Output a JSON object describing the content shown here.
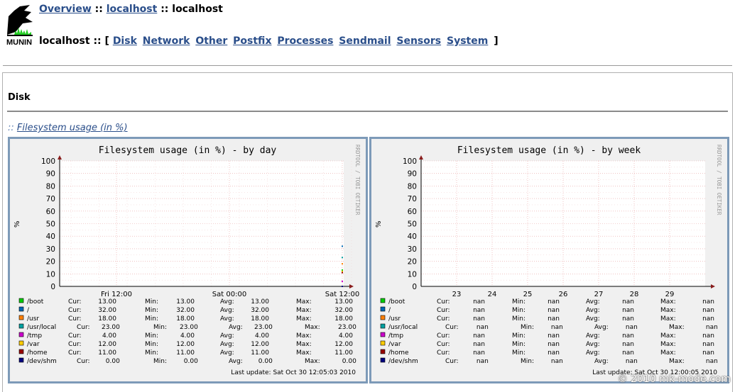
{
  "breadcrumb": {
    "overview": "Overview",
    "sep1": "::",
    "domain": "localhost",
    "sep2": "::",
    "current": "localhost"
  },
  "logo": {
    "text": "MUNIN"
  },
  "host_nav": {
    "host": "localhost",
    "separator": "::",
    "open": "[",
    "close": "]",
    "categories": [
      "Disk",
      "Network",
      "Other",
      "Postfix",
      "Processes",
      "Sendmail",
      "Sensors",
      "System"
    ]
  },
  "category": {
    "title": "Disk"
  },
  "graph_link": {
    "prefix": "::",
    "label": "Filesystem usage (in %)"
  },
  "watermark": "© 2010 mk-mode.com",
  "colors": {
    "link": "#2a4e8a",
    "frame": "#7d9ab8",
    "grid": "#e8a0a0",
    "axis": "#8a1d1d"
  },
  "graphs": [
    {
      "id": "day",
      "title": "Filesystem usage (in %) - by day",
      "ylabel": "%",
      "side_label": "RRDTOOL / TOBI OETIKER",
      "y_ticks": [
        "100",
        "90",
        "80",
        "70",
        "60",
        "50",
        "40",
        "30",
        "20",
        "10",
        "0"
      ],
      "x_ticks": [
        "Fri 12:00",
        "Sat 00:00",
        "Sat 12:00"
      ],
      "legend_headers": [
        "Cur:",
        "Min:",
        "Avg:",
        "Max:"
      ],
      "legend": [
        {
          "label": "/boot",
          "color": "#00cc00",
          "cur": "13.00",
          "min": "13.00",
          "avg": "13.00",
          "max": "13.00"
        },
        {
          "label": "/",
          "color": "#0066b3",
          "cur": "32.00",
          "min": "32.00",
          "avg": "32.00",
          "max": "32.00"
        },
        {
          "label": "/usr",
          "color": "#ff8000",
          "cur": "18.00",
          "min": "18.00",
          "avg": "18.00",
          "max": "18.00"
        },
        {
          "label": "/usr/local",
          "color": "#00a0a0",
          "cur": "23.00",
          "min": "23.00",
          "avg": "23.00",
          "max": "23.00"
        },
        {
          "label": "/tmp",
          "color": "#cc00cc",
          "cur": "4.00",
          "min": "4.00",
          "avg": "4.00",
          "max": "4.00"
        },
        {
          "label": "/var",
          "color": "#ffcc00",
          "cur": "12.00",
          "min": "12.00",
          "avg": "12.00",
          "max": "12.00"
        },
        {
          "label": "/home",
          "color": "#990000",
          "cur": "11.00",
          "min": "11.00",
          "avg": "11.00",
          "max": "11.00"
        },
        {
          "label": "/dev/shm",
          "color": "#000080",
          "cur": "0.00",
          "min": "0.00",
          "avg": "0.00",
          "max": "0.00"
        }
      ],
      "last_update": "Last update: Sat Oct 30 12:05:03 2010"
    },
    {
      "id": "week",
      "title": "Filesystem usage (in %) - by week",
      "ylabel": "%",
      "side_label": "RRDTOOL / TOBI OETIKER",
      "y_ticks": [
        "100",
        "90",
        "80",
        "70",
        "60",
        "50",
        "40",
        "30",
        "20",
        "10",
        "0"
      ],
      "x_ticks": [
        "23",
        "24",
        "25",
        "26",
        "27",
        "28",
        "29"
      ],
      "legend_headers": [
        "Cur:",
        "Min:",
        "Avg:",
        "Max:"
      ],
      "legend": [
        {
          "label": "/boot",
          "color": "#00cc00",
          "cur": "nan",
          "min": "nan",
          "avg": "nan",
          "max": "nan"
        },
        {
          "label": "/",
          "color": "#0066b3",
          "cur": "nan",
          "min": "nan",
          "avg": "nan",
          "max": "nan"
        },
        {
          "label": "/usr",
          "color": "#ff8000",
          "cur": "nan",
          "min": "nan",
          "avg": "nan",
          "max": "nan"
        },
        {
          "label": "/usr/local",
          "color": "#00a0a0",
          "cur": "nan",
          "min": "nan",
          "avg": "nan",
          "max": "nan"
        },
        {
          "label": "/tmp",
          "color": "#cc00cc",
          "cur": "nan",
          "min": "nan",
          "avg": "nan",
          "max": "nan"
        },
        {
          "label": "/var",
          "color": "#ffcc00",
          "cur": "nan",
          "min": "nan",
          "avg": "nan",
          "max": "nan"
        },
        {
          "label": "/home",
          "color": "#990000",
          "cur": "nan",
          "min": "nan",
          "avg": "nan",
          "max": "nan"
        },
        {
          "label": "/dev/shm",
          "color": "#000080",
          "cur": "nan",
          "min": "nan",
          "avg": "nan",
          "max": "nan"
        }
      ],
      "last_update": "Last update: Sat Oct 30 12:00:05 2010"
    }
  ],
  "chart_data": [
    {
      "type": "line",
      "title": "Filesystem usage (in %) - by day",
      "ylabel": "%",
      "ylim": [
        0,
        100
      ],
      "x_ticks": [
        "Fri 12:00",
        "Sat 00:00",
        "Sat 12:00"
      ],
      "series": [
        {
          "name": "/boot",
          "values": [
            13.0
          ]
        },
        {
          "name": "/",
          "values": [
            32.0
          ]
        },
        {
          "name": "/usr",
          "values": [
            18.0
          ]
        },
        {
          "name": "/usr/local",
          "values": [
            23.0
          ]
        },
        {
          "name": "/tmp",
          "values": [
            4.0
          ]
        },
        {
          "name": "/var",
          "values": [
            12.0
          ]
        },
        {
          "name": "/home",
          "values": [
            11.0
          ]
        },
        {
          "name": "/dev/shm",
          "values": [
            0.0
          ]
        }
      ],
      "grid": true
    },
    {
      "type": "line",
      "title": "Filesystem usage (in %) - by week",
      "ylabel": "%",
      "ylim": [
        0,
        100
      ],
      "x_ticks": [
        "23",
        "24",
        "25",
        "26",
        "27",
        "28",
        "29"
      ],
      "series": [],
      "grid": true
    }
  ]
}
